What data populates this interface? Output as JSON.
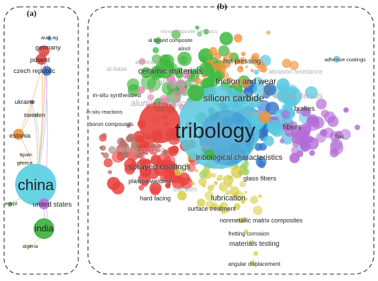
{
  "panels": {
    "a": {
      "letter": "(a)",
      "nodes": [
        {
          "label": "audi ag",
          "color": "#4aa3df",
          "weight": 1
        },
        {
          "label": "germany",
          "color": "#e24a4a",
          "weight": 4
        },
        {
          "label": "poland",
          "color": "#e24a4a",
          "weight": 4
        },
        {
          "label": "czech republic",
          "color": "#3b78c9",
          "weight": 3
        },
        {
          "label": "ukraine",
          "color": "#8e7cc3",
          "weight": 2
        },
        {
          "label": "sweden",
          "color": "#8cc152",
          "weight": 1
        },
        {
          "label": "estonia",
          "color": "#f0923a",
          "weight": 3
        },
        {
          "label": "spain",
          "color": "#e0c84b",
          "weight": 1
        },
        {
          "label": "greece",
          "color": "#e0c84b",
          "weight": 1
        },
        {
          "label": "china",
          "color": "#56cfe1",
          "weight": 10
        },
        {
          "label": "egypt",
          "color": "#5bbf4a",
          "weight": 1
        },
        {
          "label": "united states",
          "color": "#c86bd8",
          "weight": 3
        },
        {
          "label": "india",
          "color": "#3cae3c",
          "weight": 6
        },
        {
          "label": "algeria",
          "color": "#e0c84b",
          "weight": 1
        }
      ]
    },
    "b": {
      "letter": "(b)",
      "labels": [
        {
          "text": "nanocomposite ceramics",
          "faint": true
        },
        {
          "text": "al based composite",
          "faint": false
        },
        {
          "text": "alzo3",
          "faint": false
        },
        {
          "text": "adhesive coatings",
          "faint": false
        },
        {
          "text": "aluminum",
          "faint": true
        },
        {
          "text": "hot pressing",
          "faint": false
        },
        {
          "text": "al-base",
          "faint": true
        },
        {
          "text": "ceramic materials",
          "faint": false
        },
        {
          "text": "abrasion resistance",
          "faint": true
        },
        {
          "text": "aluminum",
          "faint": true
        },
        {
          "text": "friction and wear",
          "faint": false
        },
        {
          "text": "in-situ synthesized",
          "faint": false
        },
        {
          "text": "silicon carbide",
          "faint": false
        },
        {
          "text": "tion materials",
          "faint": true
        },
        {
          "text": "aluminum alloys",
          "faint": true
        },
        {
          "text": "compo",
          "faint": true
        },
        {
          "text": "brakes",
          "faint": false
        },
        {
          "text": "in-situ reactions",
          "faint": false
        },
        {
          "text": "boron compounds",
          "faint": false
        },
        {
          "text": "tribology",
          "faint": false
        },
        {
          "text": "fibers",
          "faint": false
        },
        {
          "text": "flax",
          "faint": false
        },
        {
          "text": "cladding coating",
          "faint": true
        },
        {
          "text": "tribological characteristics",
          "faint": false
        },
        {
          "text": "poly",
          "faint": true
        },
        {
          "text": "sprayed coatings",
          "faint": false
        },
        {
          "text": "plasma welding",
          "faint": false
        },
        {
          "text": "glass fibers",
          "faint": false
        },
        {
          "text": "titanium",
          "faint": true
        },
        {
          "text": "hard facing",
          "faint": false
        },
        {
          "text": "lubrication",
          "faint": false
        },
        {
          "text": "surface treatment",
          "faint": false
        },
        {
          "text": "nonmetallic matrix composites",
          "faint": false
        },
        {
          "text": "fretting corrosion",
          "faint": false
        },
        {
          "text": "materials testing",
          "faint": false
        },
        {
          "text": "angular displacement",
          "faint": false
        }
      ],
      "clusters": [
        {
          "name": "red",
          "color": "#e8423f"
        },
        {
          "name": "green",
          "color": "#3fb83f"
        },
        {
          "name": "blue",
          "color": "#2f74c9"
        },
        {
          "name": "cyan",
          "color": "#58c8e0"
        },
        {
          "name": "purple",
          "color": "#b36ad6"
        },
        {
          "name": "orange",
          "color": "#f0923a"
        },
        {
          "name": "yellow",
          "color": "#d8d04a"
        },
        {
          "name": "brown",
          "color": "#b5736a"
        },
        {
          "name": "pink",
          "color": "#e58ab8"
        },
        {
          "name": "light-green",
          "color": "#9bd46a"
        }
      ]
    }
  }
}
